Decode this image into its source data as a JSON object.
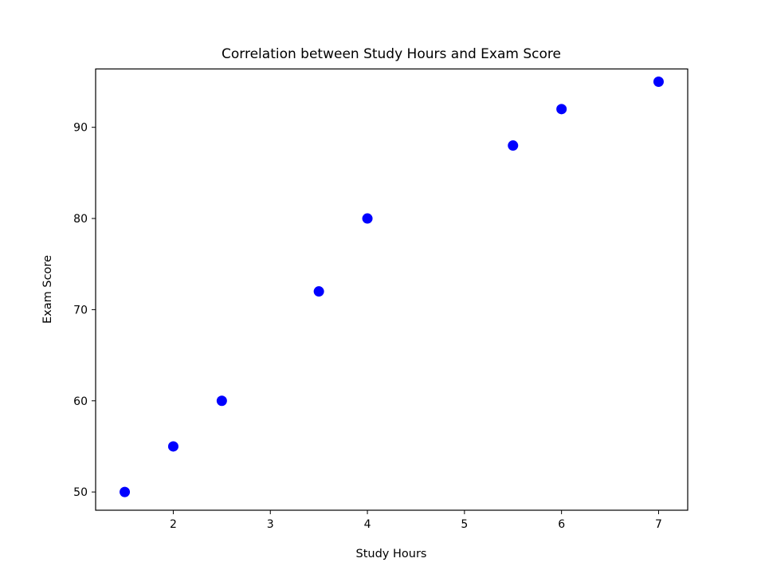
{
  "chart_data": {
    "type": "scatter",
    "title": "Correlation between Study Hours and Exam Score",
    "xlabel": "Study Hours",
    "ylabel": "Exam Score",
    "xlim": [
      1.2,
      7.3
    ],
    "ylim": [
      48,
      96.4
    ],
    "xticks": [
      2,
      3,
      4,
      5,
      6,
      7
    ],
    "yticks": [
      50,
      60,
      70,
      80,
      90
    ],
    "grid": false,
    "series": [
      {
        "color": "#0000ff",
        "x": [
          1.5,
          2,
          2.5,
          3.5,
          4,
          5.5,
          6,
          7
        ],
        "y": [
          50,
          55,
          60,
          72,
          80,
          88,
          92,
          95
        ]
      }
    ]
  }
}
